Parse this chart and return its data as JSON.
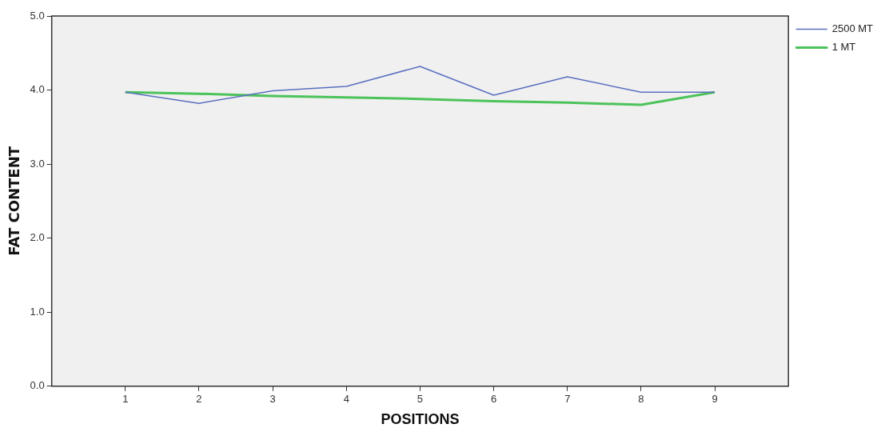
{
  "chart_data": {
    "type": "line",
    "xlabel": "POSITIONS",
    "ylabel": "FAT CONTENT",
    "x": [
      1,
      2,
      3,
      4,
      5,
      6,
      7,
      8,
      9
    ],
    "xlim": [
      0,
      10
    ],
    "xticks": [
      1,
      2,
      3,
      4,
      5,
      6,
      7,
      8,
      9
    ],
    "ylim": [
      0,
      5
    ],
    "yticks": [
      {
        "value": 0,
        "label": "0.0"
      },
      {
        "value": 1,
        "label": "1.0"
      },
      {
        "value": 2,
        "label": "2.0"
      },
      {
        "value": 3,
        "label": "3.0"
      },
      {
        "value": 4,
        "label": "4.0"
      },
      {
        "value": 5,
        "label": "5.0"
      }
    ],
    "grid": false,
    "legend": "top right",
    "marker": "none",
    "line_style": "solid",
    "series": [
      {
        "name": "2500 MT",
        "color": "#5b6fc0",
        "values": [
          3.97,
          3.82,
          3.99,
          4.05,
          4.32,
          3.93,
          4.18,
          3.97,
          3.97
        ]
      },
      {
        "name": "1 MT",
        "color": "#4cc35a",
        "values": [
          3.97,
          3.95,
          3.92,
          3.9,
          3.88,
          3.85,
          3.83,
          3.8,
          3.97
        ]
      }
    ]
  }
}
